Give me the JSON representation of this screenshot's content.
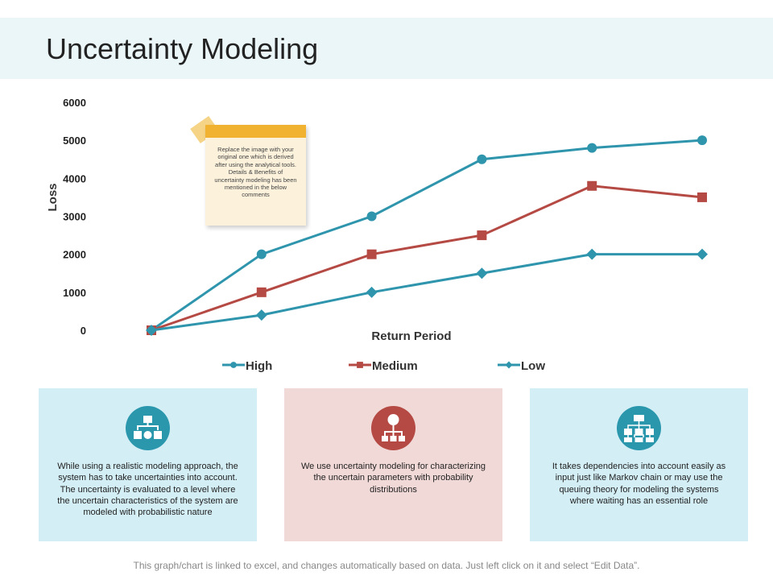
{
  "title": "Uncertainty Modeling",
  "note": "Replace the image with your original one which is derived after using the analytical tools. Details & Benefits of uncertainty modeling has been mentioned in the below comments",
  "chart_data": {
    "type": "line",
    "xlabel": "Return Period",
    "ylabel": "Loss",
    "ylim": [
      0,
      6000
    ],
    "yticks": [
      "0",
      "1000",
      "2000",
      "3000",
      "4000",
      "5000",
      "6000"
    ],
    "x": [
      1,
      2,
      3,
      4,
      5,
      6
    ],
    "legend": "bottom",
    "series": [
      {
        "name": "High",
        "values": [
          0,
          2000,
          3000,
          4500,
          4800,
          5000
        ],
        "color": "#2e95ad",
        "marker": "circle"
      },
      {
        "name": "Medium",
        "values": [
          0,
          1000,
          2000,
          2500,
          3800,
          3500
        ],
        "color": "#b54a44",
        "marker": "square"
      },
      {
        "name": "Low",
        "values": [
          0,
          400,
          1000,
          1500,
          2000,
          2000
        ],
        "color": "#2e95ad",
        "marker": "diamond"
      }
    ]
  },
  "cards": [
    {
      "text": "While using a realistic modeling approach, the system has to take uncertainties into account. The uncertainty is evaluated to  a level where the uncertain characteristics of the system are modeled with probabilistic nature",
      "bg": "#d3eef5",
      "icon_color": "#2a97ad",
      "icon": "flowchart-icon"
    },
    {
      "text": "We use uncertainty modeling for characterizing the uncertain parameters with probability distributions",
      "bg": "#f1d9d7",
      "icon_color": "#b54a44",
      "icon": "hierarchy-icon"
    },
    {
      "text": "It takes dependencies into account easily as input just like Markov chain or may use the queuing theory for modeling the systems where waiting has an essential role",
      "bg": "#d3eef5",
      "icon_color": "#2a97ad",
      "icon": "org-chart-icon"
    }
  ],
  "footer": "This graph/chart is linked to excel, and changes automatically based on data. Just left click on it and select “Edit Data”."
}
